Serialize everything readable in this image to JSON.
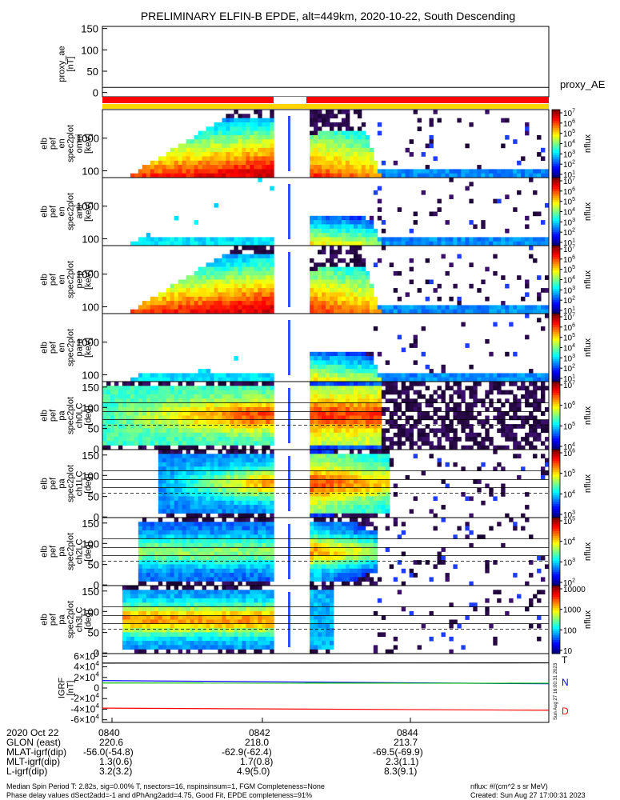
{
  "title": "PRELIMINARY ELFIN-B EPDE, alt=449km, 2020-10-22, South Descending",
  "colors": {
    "attitude_bar_red": "#ff0000",
    "attitude_bar_yellow": "#ffd400",
    "igrf_t": "#000000",
    "igrf_n": "#0000ff",
    "igrf_n2": "#00c000",
    "igrf_d": "#ff0000"
  },
  "chart_data": [
    {
      "id": "proxy_ae",
      "type": "line",
      "ylabel": "proxy_ae [nT]",
      "ylim": [
        -10,
        155
      ],
      "yticks": [
        "150",
        "100",
        "50",
        "0"
      ],
      "yticks_values": [
        150,
        100,
        50,
        0
      ],
      "series": [
        {
          "name": "proxy_AE",
          "values": [
            12,
            12
          ]
        }
      ]
    },
    {
      "id": "attitude_bar",
      "type": "bar",
      "segments": [
        {
          "color": "red",
          "from": "0839.2",
          "to": "0842.3"
        },
        {
          "color": "white",
          "from": "0842.3",
          "to": "0842.9"
        },
        {
          "color": "red",
          "from": "0842.9",
          "to": "0846.3"
        }
      ]
    },
    {
      "id": "pef_en_spec2plot_omni",
      "type": "heatmap",
      "ylabel": "elb pef en spec2plot omni [keV]",
      "yscale": "log",
      "yticks": [
        "1000",
        "100"
      ],
      "colorbar": {
        "label": "nflux",
        "ticks": [
          "10^7",
          "10^6",
          "10^5",
          "10^4",
          "10^3",
          "10^2",
          "10^1"
        ]
      }
    },
    {
      "id": "pef_en_spec2plot_anti",
      "type": "heatmap",
      "ylabel": "elb pef en spec2plot anti [keV]",
      "yscale": "log",
      "yticks": [
        "1000",
        "100"
      ],
      "colorbar": {
        "label": "nflux",
        "ticks": [
          "10^7",
          "10^6",
          "10^5",
          "10^4",
          "10^3",
          "10^2",
          "10^1"
        ]
      }
    },
    {
      "id": "pef_en_spec2plot_perp",
      "type": "heatmap",
      "ylabel": "elb pef en spec2plot perp [keV]",
      "yscale": "log",
      "yticks": [
        "1000",
        "100"
      ],
      "colorbar": {
        "label": "nflux",
        "ticks": [
          "10^7",
          "10^6",
          "10^5",
          "10^4",
          "10^3",
          "10^2",
          "10^1"
        ]
      }
    },
    {
      "id": "pef_en_spec2plot_para",
      "type": "heatmap",
      "ylabel": "elb pef en spec2plot para [keV]",
      "yscale": "log",
      "yticks": [
        "1000",
        "100"
      ],
      "colorbar": {
        "label": "nflux",
        "ticks": [
          "10^7",
          "10^6",
          "10^5",
          "10^4",
          "10^3",
          "10^2",
          "10^1"
        ]
      }
    },
    {
      "id": "pa_spec2plot_ch0LC",
      "type": "heatmap",
      "ylabel": "elb pef pa spec2plot ch0LC [deg]",
      "yticks": [
        "150",
        "100",
        "50",
        "0"
      ],
      "colorbar": {
        "label": "nflux",
        "ticks": [
          "10^7",
          "10^6",
          "10^5",
          "10^4"
        ]
      }
    },
    {
      "id": "pa_spec2plot_ch1LC",
      "type": "heatmap",
      "ylabel": "elb pef pa spec2plot ch1LC [deg]",
      "yticks": [
        "150",
        "100",
        "50",
        "0"
      ],
      "colorbar": {
        "label": "nflux",
        "ticks": [
          "10^6",
          "10^5",
          "10^4",
          "10^3"
        ]
      }
    },
    {
      "id": "pa_spec2plot_ch2LC",
      "type": "heatmap",
      "ylabel": "elb pef pa spec2plot ch2LC [deg]",
      "yticks": [
        "150",
        "100",
        "50",
        "0"
      ],
      "colorbar": {
        "label": "nflux",
        "ticks": [
          "10^5",
          "10^4",
          "10^3",
          "10^2"
        ]
      }
    },
    {
      "id": "pa_spec2plot_ch3LC",
      "type": "heatmap",
      "ylabel": "elb pef pa spec2plot ch3LC [deg]",
      "yticks": [
        "150",
        "100",
        "50",
        "0"
      ],
      "colorbar": {
        "label": "nflux",
        "ticks": [
          "10000",
          "1000",
          "100",
          "10"
        ]
      }
    },
    {
      "id": "igrf",
      "type": "line",
      "ylabel": "IGRF [nT]",
      "ylim": [
        -65000,
        65000
      ],
      "yticks": [
        "6×10^4",
        "4×10^4",
        "2×10^4",
        "0",
        "-2×10^4",
        "-4×10^4",
        "-6×10^4"
      ],
      "yticks_values": [
        60000,
        40000,
        20000,
        0,
        -20000,
        -40000,
        -60000
      ],
      "series": [
        {
          "name": "T",
          "values": [
            47000,
            47500
          ]
        },
        {
          "name": "N",
          "values": [
            14000,
            8000
          ]
        },
        {
          "name": "N",
          "values": [
            9500,
            9000
          ]
        },
        {
          "name": "D",
          "values": [
            -38000,
            -42000
          ]
        }
      ]
    }
  ],
  "side_labels": {
    "proxy_ae": "proxy_AE",
    "nflux": "nflux",
    "igrf_t": "T",
    "igrf_n": "N",
    "igrf_d": "D"
  },
  "footer": {
    "date": "2020 Oct 22",
    "times": [
      "0840",
      "0842",
      "0844"
    ],
    "rows": [
      {
        "label": "GLON (east)",
        "values": [
          "220.6",
          "218.0",
          "213.7"
        ]
      },
      {
        "label": "MLAT-igrf(dip)",
        "values": [
          "-56.0(-54.8)",
          "-62.9(-62.4)",
          "-69.5(-69.9)"
        ]
      },
      {
        "label": "MLT-igrf(dip)",
        "values": [
          "1.3(0.6)",
          "1.7(0.8)",
          "2.3(1.1)"
        ]
      },
      {
        "label": "L-igrf(dip)",
        "values": [
          "3.2(3.2)",
          "4.9(5.0)",
          "8.3(9.1)"
        ]
      }
    ],
    "note_line1": "Median Spin Period T: 2.82s, sig=0.00% T, nsectors=16, nspinsinsum=1, FGM Completeness=None",
    "note_line2": "Phase delay values dSect2add=-1 and dPhAng2add=4.75, Good Fit, EPDE completeness=91%",
    "units": "nflux: #/(cm^2 s sr MeV)",
    "created": "Created: Sun Aug 27 17:00:31 2023",
    "vertical_stamp": "Sun Aug 27 16:00:31 2023"
  }
}
